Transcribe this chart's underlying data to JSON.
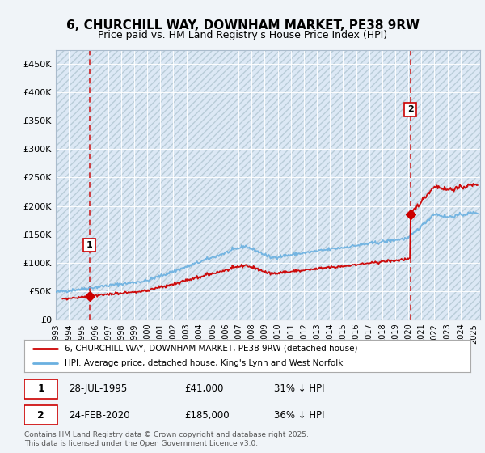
{
  "title_line1": "6, CHURCHILL WAY, DOWNHAM MARKET, PE38 9RW",
  "title_line2": "Price paid vs. HM Land Registry's House Price Index (HPI)",
  "background_color": "#f0f4f8",
  "plot_bg_color": "#dce8f5",
  "line1_color": "#cc0000",
  "line2_color": "#6ab0e0",
  "vline_color": "#cc0000",
  "annotation_box_color": "#cc0000",
  "sale1_date_num": 1995.57,
  "sale1_price": 41000,
  "sale2_date_num": 2020.15,
  "sale2_price": 185000,
  "legend_line1": "6, CHURCHILL WAY, DOWNHAM MARKET, PE38 9RW (detached house)",
  "legend_line2": "HPI: Average price, detached house, King's Lynn and West Norfolk",
  "footer": "Contains HM Land Registry data © Crown copyright and database right 2025.\nThis data is licensed under the Open Government Licence v3.0.",
  "ylim": [
    0,
    475000
  ],
  "xlim_start": 1993.0,
  "xlim_end": 2025.5,
  "yticks": [
    0,
    50000,
    100000,
    150000,
    200000,
    250000,
    300000,
    350000,
    400000,
    450000
  ],
  "ytick_labels": [
    "£0",
    "£50K",
    "£100K",
    "£150K",
    "£200K",
    "£250K",
    "£300K",
    "£350K",
    "£400K",
    "£450K"
  ],
  "xticks": [
    1993,
    1994,
    1995,
    1996,
    1997,
    1998,
    1999,
    2000,
    2001,
    2002,
    2003,
    2004,
    2005,
    2006,
    2007,
    2008,
    2009,
    2010,
    2011,
    2012,
    2013,
    2014,
    2015,
    2016,
    2017,
    2018,
    2019,
    2020,
    2021,
    2022,
    2023,
    2024,
    2025
  ],
  "sale1_date_str": "28-JUL-1995",
  "sale1_price_str": "£41,000",
  "sale1_note": "31% ↓ HPI",
  "sale2_date_str": "24-FEB-2020",
  "sale2_price_str": "£185,000",
  "sale2_note": "36% ↓ HPI"
}
